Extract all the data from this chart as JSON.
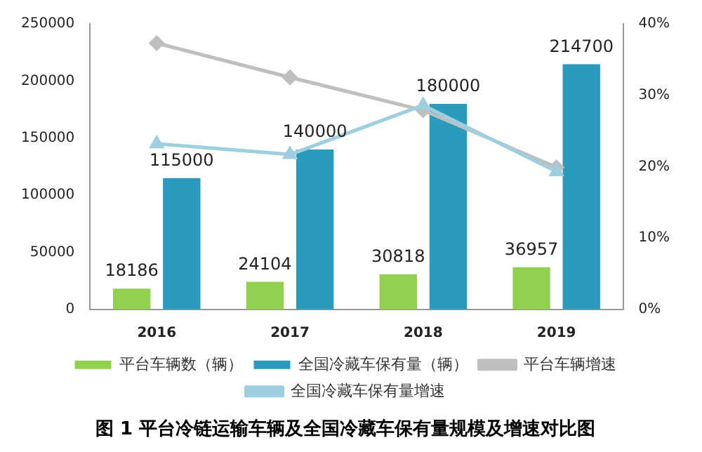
{
  "chart_data": {
    "type": "bar",
    "title": "图 1 平台冷链运输车辆及全国冷藏车保有量规模及增速对比图",
    "categories": [
      "2016",
      "2017",
      "2018",
      "2019"
    ],
    "ylim": [
      0,
      250000
    ],
    "yticks": [
      0,
      50000,
      100000,
      150000,
      200000,
      250000
    ],
    "y2lim": [
      0,
      40
    ],
    "y2ticks": [
      {
        "value": 0,
        "label": "0%"
      },
      {
        "value": 10,
        "label": "10%"
      },
      {
        "value": 20,
        "label": "20%"
      },
      {
        "value": 30,
        "label": "30%"
      },
      {
        "value": 40,
        "label": "40%"
      }
    ],
    "grid": false,
    "legend": "bottom",
    "series": [
      {
        "name": "平台车辆数（辆）",
        "color": "#92d050",
        "values": [
          18186,
          24104,
          30818,
          36957
        ],
        "value_labels": [
          "18186",
          "24104",
          "30818",
          "36957"
        ]
      },
      {
        "name": "全国冷藏车保有量（辆）",
        "color": "#2b9bbd",
        "values": [
          115000,
          140000,
          180000,
          214700
        ],
        "value_labels": [
          "115000",
          "140000",
          "180000",
          "214700"
        ]
      },
      {
        "name": "平台车辆增速",
        "type": "line",
        "axis": "y2",
        "color": "#bfbfbf",
        "marker": "diamond",
        "values": [
          37.3,
          32.5,
          27.9,
          19.9
        ]
      },
      {
        "name": "全国冷藏车保有量增速",
        "type": "line",
        "axis": "y2",
        "color": "#9dcfe0",
        "marker": "triangle",
        "values": [
          23.2,
          21.7,
          28.6,
          19.3
        ]
      }
    ]
  }
}
